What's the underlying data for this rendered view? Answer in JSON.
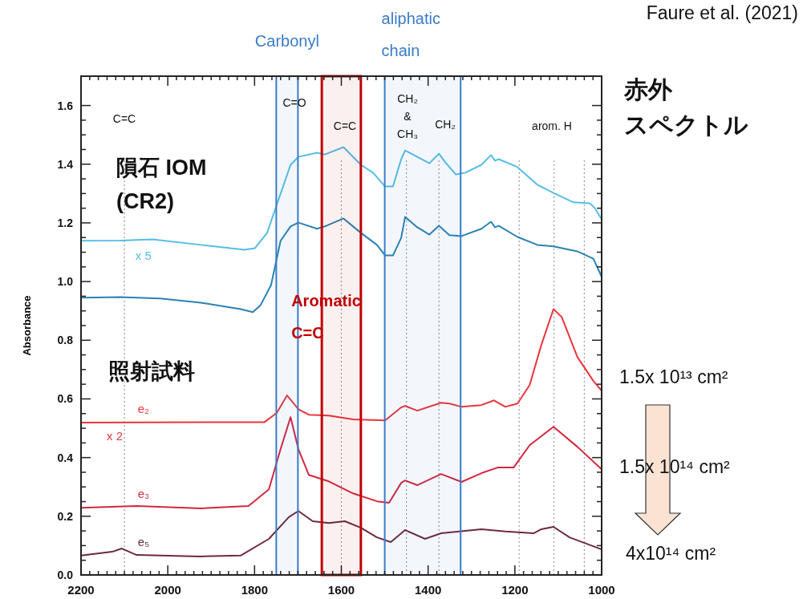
{
  "chart_data": {
    "type": "line",
    "ylabel": "Absorbance",
    "xlim": [
      2200,
      1000
    ],
    "ylim": [
      0,
      1.7
    ],
    "xticks": [
      2200,
      2000,
      1800,
      1600,
      1400,
      1200,
      1000
    ],
    "yticks": [
      {
        "value": 0,
        "label": "0.0"
      },
      {
        "value": 0.2,
        "label": "0.2"
      },
      {
        "value": 0.4,
        "label": "0.4"
      },
      {
        "value": 0.6,
        "label": "0.6"
      },
      {
        "value": 0.8,
        "label": "0.8"
      },
      {
        "value": 1.0,
        "label": "1.0"
      },
      {
        "value": 1.2,
        "label": "1.2"
      },
      {
        "value": 1.4,
        "label": "1.4"
      },
      {
        "value": 1.6,
        "label": "1.6"
      }
    ],
    "series": [
      {
        "name": "x 5",
        "color": "#55bde6",
        "x": [
          2200,
          2109,
          2035,
          1924,
          1823,
          1799,
          1771,
          1749,
          1717,
          1699,
          1656,
          1638,
          1595,
          1555,
          1527,
          1499,
          1481,
          1462,
          1453,
          1425,
          1397,
          1375,
          1360,
          1336,
          1314,
          1277,
          1255,
          1246,
          1237,
          1194,
          1148,
          1111,
          1065,
          1028,
          1017,
          1000
        ],
        "values": [
          1.139,
          1.14,
          1.144,
          1.125,
          1.108,
          1.114,
          1.166,
          1.261,
          1.398,
          1.425,
          1.439,
          1.433,
          1.458,
          1.398,
          1.371,
          1.324,
          1.324,
          1.417,
          1.447,
          1.425,
          1.403,
          1.436,
          1.406,
          1.365,
          1.371,
          1.398,
          1.431,
          1.412,
          1.417,
          1.39,
          1.33,
          1.302,
          1.27,
          1.267,
          1.253,
          1.212
        ]
      },
      {
        "color": "#2a82b5",
        "x": [
          2200,
          2109,
          2017,
          1924,
          1832,
          1804,
          1786,
          1762,
          1740,
          1717,
          1699,
          1656,
          1638,
          1595,
          1555,
          1518,
          1499,
          1481,
          1462,
          1453,
          1425,
          1397,
          1375,
          1351,
          1323,
          1277,
          1255,
          1246,
          1237,
          1194,
          1148,
          1111,
          1056,
          1019,
          1000
        ],
        "values": [
          0.945,
          0.947,
          0.942,
          0.928,
          0.906,
          0.896,
          0.92,
          0.988,
          1.139,
          1.188,
          1.201,
          1.18,
          1.188,
          1.215,
          1.166,
          1.125,
          1.089,
          1.089,
          1.149,
          1.22,
          1.185,
          1.16,
          1.19,
          1.158,
          1.155,
          1.18,
          1.204,
          1.185,
          1.19,
          1.152,
          1.125,
          1.12,
          1.103,
          1.078,
          1.016
        ]
      },
      {
        "name": "e₂",
        "color": "#e8363c",
        "x": [
          2200,
          1777,
          1749,
          1725,
          1699,
          1675,
          1629,
          1573,
          1499,
          1462,
          1453,
          1425,
          1370,
          1351,
          1323,
          1277,
          1248,
          1222,
          1194,
          1166,
          1139,
          1111,
          1092,
          1056,
          1019,
          1000
        ],
        "values": [
          0.519,
          0.521,
          0.552,
          0.612,
          0.565,
          0.546,
          0.543,
          0.53,
          0.527,
          0.571,
          0.576,
          0.56,
          0.587,
          0.584,
          0.573,
          0.579,
          0.595,
          0.573,
          0.584,
          0.647,
          0.784,
          0.906,
          0.879,
          0.743,
          0.661,
          0.628
        ]
      },
      {
        "name": "e₃",
        "color": "#d3283f",
        "x": [
          2200,
          2072,
          1924,
          1814,
          1767,
          1740,
          1717,
          1699,
          1675,
          1629,
          1573,
          1518,
          1490,
          1462,
          1453,
          1425,
          1370,
          1323,
          1277,
          1240,
          1203,
          1166,
          1111,
          1056,
          1000
        ],
        "values": [
          0.229,
          0.235,
          0.227,
          0.235,
          0.292,
          0.429,
          0.538,
          0.429,
          0.341,
          0.319,
          0.278,
          0.251,
          0.246,
          0.314,
          0.322,
          0.306,
          0.344,
          0.317,
          0.347,
          0.366,
          0.366,
          0.442,
          0.505,
          0.437,
          0.36
        ]
      },
      {
        "name": "e₅",
        "color": "#6e2a3c",
        "x": [
          2200,
          2128,
          2106,
          2072,
          1924,
          1832,
          1767,
          1721,
          1699,
          1666,
          1629,
          1592,
          1555,
          1518,
          1486,
          1453,
          1407,
          1370,
          1277,
          1222,
          1157,
          1139,
          1111,
          1074,
          1000
        ],
        "values": [
          0.066,
          0.079,
          0.09,
          0.068,
          0.063,
          0.066,
          0.123,
          0.197,
          0.218,
          0.183,
          0.177,
          0.183,
          0.161,
          0.128,
          0.112,
          0.153,
          0.123,
          0.142,
          0.156,
          0.148,
          0.142,
          0.156,
          0.164,
          0.128,
          0.087
        ]
      }
    ],
    "bands": [
      {
        "axis": "x",
        "from": 1750,
        "to": 1700,
        "label": "Carbonyl",
        "color": "#3a7cc8"
      },
      {
        "axis": "x",
        "from": 1645,
        "to": 1555,
        "label": "Aromatic\nC=C",
        "color": "#c00000"
      },
      {
        "axis": "x",
        "from": 1500,
        "to": 1325,
        "label": "aliphatic\nchain",
        "color": "#3a7cc8"
      }
    ],
    "ref_lines": [
      {
        "axis": "x",
        "value": 2100,
        "color": "#999999",
        "line_style": "dotted"
      },
      {
        "axis": "x",
        "value": 1700,
        "color": "#999999",
        "line_style": "dotted"
      },
      {
        "axis": "x",
        "value": 1600,
        "color": "#999999",
        "line_style": "dotted"
      },
      {
        "axis": "x",
        "value": 1450,
        "color": "#999999",
        "line_style": "dotted"
      },
      {
        "axis": "x",
        "value": 1375,
        "color": "#999999",
        "line_style": "dotted"
      },
      {
        "axis": "x",
        "value": 1190,
        "color": "#999999",
        "line_style": "dotted"
      },
      {
        "axis": "x",
        "value": 1110,
        "color": "#999999",
        "line_style": "dotted"
      },
      {
        "axis": "x",
        "value": 1040,
        "color": "#999999",
        "line_style": "dotted"
      }
    ],
    "annotations": [
      "C=C",
      "C=O",
      "C=C",
      "CH₂\n&\nCH₃",
      "CH₂",
      "arom. H",
      "x 2",
      "隕石 IOM\n(CR2)",
      "照射試料",
      "赤外スペクトル",
      "1.5x 10¹³ cm²",
      "1.5x 10¹⁴ cm²",
      "4x10¹⁴ cm²",
      "Faure et al. (2021)"
    ]
  }
}
